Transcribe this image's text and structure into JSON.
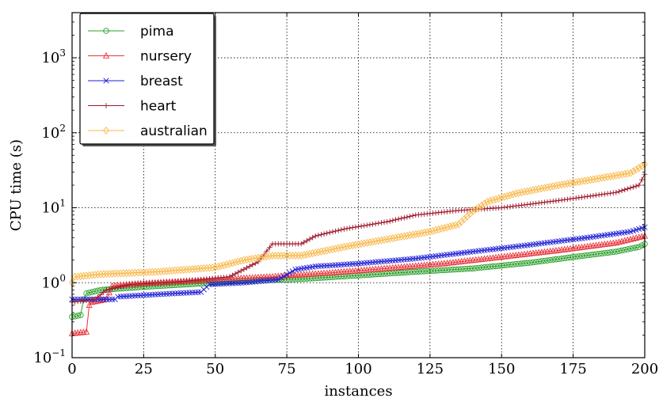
{
  "chart_data": {
    "type": "line",
    "xlabel": "instances",
    "ylabel": "CPU time (s)",
    "xlim": [
      0,
      200
    ],
    "ylim": [
      0.1,
      4000
    ],
    "y_scale": "log",
    "x_ticks": [
      {
        "value": 0,
        "label": "0"
      },
      {
        "value": 25,
        "label": "25"
      },
      {
        "value": 50,
        "label": "50"
      },
      {
        "value": 75,
        "label": "75"
      },
      {
        "value": 100,
        "label": "100"
      },
      {
        "value": 125,
        "label": "125"
      },
      {
        "value": 150,
        "label": "150"
      },
      {
        "value": 175,
        "label": "175"
      },
      {
        "value": 200,
        "label": "200"
      }
    ],
    "y_ticks": [
      {
        "value": 0.1,
        "base": "10",
        "exp": "−1"
      },
      {
        "value": 1,
        "base": "10",
        "exp": "0"
      },
      {
        "value": 10,
        "base": "10",
        "exp": "1"
      },
      {
        "value": 100,
        "base": "10",
        "exp": "2"
      },
      {
        "value": 1000,
        "base": "10",
        "exp": "3"
      }
    ],
    "grid": true,
    "legend_position": "top-left",
    "series": [
      {
        "name": "pima",
        "color": "#2ca02c",
        "marker": "circle",
        "points": [
          [
            0,
            0.35
          ],
          [
            3,
            0.37
          ],
          [
            4,
            0.6
          ],
          [
            5,
            0.72
          ],
          [
            10,
            0.8
          ],
          [
            25,
            0.88
          ],
          [
            40,
            0.95
          ],
          [
            60,
            1.05
          ],
          [
            80,
            1.12
          ],
          [
            100,
            1.25
          ],
          [
            120,
            1.4
          ],
          [
            140,
            1.55
          ],
          [
            160,
            1.85
          ],
          [
            175,
            2.2
          ],
          [
            190,
            2.6
          ],
          [
            198,
            3.0
          ],
          [
            200,
            3.3
          ]
        ]
      },
      {
        "name": "nursery",
        "color": "#e8343b",
        "marker": "triangle",
        "points": [
          [
            0,
            0.21
          ],
          [
            5,
            0.22
          ],
          [
            6,
            0.5
          ],
          [
            7,
            0.55
          ],
          [
            12,
            0.6
          ],
          [
            14,
            0.9
          ],
          [
            20,
            0.95
          ],
          [
            30,
            1.0
          ],
          [
            50,
            1.1
          ],
          [
            70,
            1.2
          ],
          [
            90,
            1.35
          ],
          [
            110,
            1.55
          ],
          [
            130,
            1.8
          ],
          [
            150,
            2.2
          ],
          [
            170,
            2.7
          ],
          [
            190,
            3.4
          ],
          [
            200,
            4.2
          ]
        ]
      },
      {
        "name": "breast",
        "color": "#1f1fd6",
        "marker": "x",
        "points": [
          [
            0,
            0.6
          ],
          [
            12,
            0.6
          ],
          [
            15,
            0.6
          ],
          [
            16,
            0.65
          ],
          [
            30,
            0.7
          ],
          [
            45,
            0.75
          ],
          [
            48,
            0.95
          ],
          [
            60,
            1.0
          ],
          [
            72,
            1.1
          ],
          [
            78,
            1.5
          ],
          [
            85,
            1.65
          ],
          [
            100,
            1.8
          ],
          [
            120,
            2.1
          ],
          [
            140,
            2.6
          ],
          [
            160,
            3.2
          ],
          [
            180,
            4.0
          ],
          [
            195,
            4.8
          ],
          [
            200,
            5.5
          ]
        ]
      },
      {
        "name": "heart",
        "color": "#a01a2e",
        "marker": "plus",
        "points": [
          [
            0,
            0.55
          ],
          [
            8,
            0.6
          ],
          [
            12,
            0.8
          ],
          [
            20,
            0.95
          ],
          [
            40,
            1.05
          ],
          [
            55,
            1.2
          ],
          [
            65,
            1.9
          ],
          [
            70,
            3.3
          ],
          [
            80,
            3.3
          ],
          [
            85,
            4.2
          ],
          [
            95,
            5.2
          ],
          [
            110,
            6.5
          ],
          [
            120,
            8.0
          ],
          [
            135,
            9.2
          ],
          [
            150,
            10.0
          ],
          [
            170,
            12.5
          ],
          [
            190,
            16.0
          ],
          [
            198,
            20.0
          ],
          [
            200,
            28.0
          ]
        ]
      },
      {
        "name": "australian",
        "color": "#f8b84a",
        "marker": "diamond",
        "points": [
          [
            0,
            1.0
          ],
          [
            1,
            1.2
          ],
          [
            10,
            1.3
          ],
          [
            30,
            1.4
          ],
          [
            50,
            1.6
          ],
          [
            60,
            2.0
          ],
          [
            70,
            2.3
          ],
          [
            80,
            2.3
          ],
          [
            95,
            3.0
          ],
          [
            110,
            3.8
          ],
          [
            125,
            4.8
          ],
          [
            135,
            6.0
          ],
          [
            140,
            9.0
          ],
          [
            145,
            12.0
          ],
          [
            155,
            15.5
          ],
          [
            170,
            20.0
          ],
          [
            185,
            25.0
          ],
          [
            195,
            29.0
          ],
          [
            200,
            38.0
          ]
        ]
      }
    ]
  }
}
